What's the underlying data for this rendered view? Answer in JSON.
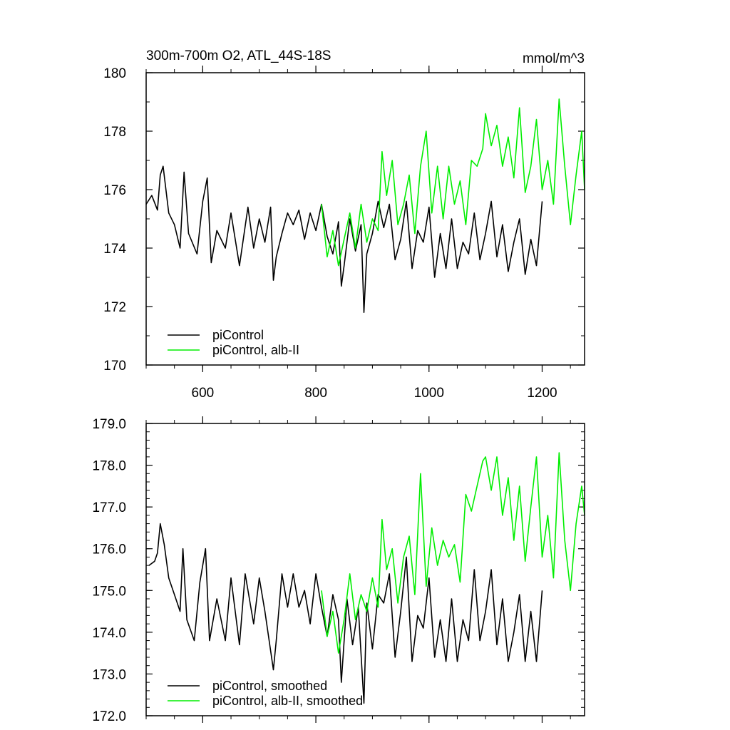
{
  "chart_data": [
    {
      "type": "line",
      "title": "300m-700m O2, ATL_44S-18S",
      "units": "mmol/m^3",
      "xlim": [
        500,
        1275
      ],
      "ylim": [
        170,
        180
      ],
      "xticks": [
        600,
        800,
        1000,
        1200
      ],
      "xtick_labels": [
        "600",
        "800",
        "1000",
        "1200"
      ],
      "yticks": [
        170,
        172,
        174,
        176,
        178,
        180
      ],
      "ytick_labels": [
        "170",
        "172",
        "174",
        "176",
        "178",
        "180"
      ],
      "series": [
        {
          "name": "piControl",
          "color": "#000000",
          "x": [
            500,
            510,
            520,
            525,
            530,
            540,
            550,
            560,
            567,
            575,
            590,
            600,
            608,
            615,
            625,
            640,
            650,
            665,
            680,
            690,
            700,
            710,
            720,
            725,
            730,
            740,
            750,
            760,
            770,
            780,
            790,
            800,
            810,
            820,
            830,
            840,
            845,
            850,
            860,
            870,
            880,
            885,
            890,
            900,
            910,
            920,
            930,
            940,
            950,
            960,
            970,
            980,
            990,
            1000,
            1010,
            1020,
            1030,
            1040,
            1050,
            1060,
            1070,
            1080,
            1090,
            1100,
            1110,
            1120,
            1130,
            1140,
            1150,
            1160,
            1170,
            1180,
            1190,
            1200
          ],
          "values": [
            175.5,
            175.8,
            175.3,
            176.5,
            176.8,
            175.2,
            174.8,
            174.0,
            176.6,
            174.5,
            173.8,
            175.6,
            176.4,
            173.5,
            174.6,
            174.0,
            175.2,
            173.4,
            175.4,
            174.0,
            175.0,
            174.2,
            175.4,
            172.9,
            173.7,
            174.5,
            175.2,
            174.8,
            175.3,
            174.3,
            175.2,
            174.6,
            175.5,
            174.4,
            173.8,
            174.9,
            172.7,
            173.4,
            175.0,
            173.9,
            174.8,
            171.8,
            173.8,
            174.5,
            175.6,
            174.7,
            175.5,
            173.6,
            174.3,
            175.6,
            173.3,
            174.6,
            174.2,
            175.4,
            173.0,
            174.5,
            173.3,
            175.0,
            173.3,
            174.2,
            173.8,
            175.2,
            173.6,
            174.5,
            175.6,
            173.7,
            174.8,
            173.2,
            174.2,
            175.0,
            173.1,
            174.3,
            173.4,
            175.6
          ]
        },
        {
          "name": "piControl, alb-II",
          "color": "#00ee00",
          "x": [
            810,
            820,
            830,
            840,
            850,
            860,
            870,
            880,
            890,
            900,
            910,
            917,
            925,
            935,
            945,
            955,
            965,
            975,
            985,
            995,
            1005,
            1015,
            1025,
            1035,
            1045,
            1055,
            1065,
            1075,
            1085,
            1095,
            1100,
            1110,
            1120,
            1130,
            1140,
            1150,
            1160,
            1170,
            1180,
            1190,
            1200,
            1210,
            1220,
            1230,
            1240,
            1250,
            1260,
            1270,
            1275
          ],
          "values": [
            175.5,
            173.7,
            174.6,
            173.4,
            174.3,
            175.2,
            174.0,
            175.5,
            174.2,
            175.0,
            174.6,
            177.3,
            175.8,
            177.0,
            174.8,
            175.5,
            176.5,
            174.5,
            176.8,
            178.0,
            175.2,
            176.8,
            175.0,
            176.8,
            175.5,
            176.3,
            174.8,
            177.0,
            176.8,
            177.4,
            178.6,
            177.5,
            178.2,
            176.8,
            177.8,
            176.4,
            178.8,
            175.9,
            176.8,
            178.4,
            176.0,
            177.0,
            175.5,
            179.1,
            176.8,
            174.8,
            176.5,
            178.0,
            176.0
          ]
        }
      ],
      "legend": [
        "piControl",
        "piControl, alb-II"
      ],
      "legend_position": "bottom-left"
    },
    {
      "type": "line",
      "title": "",
      "xlim": [
        500,
        1275
      ],
      "ylim": [
        172,
        179
      ],
      "xticks": [
        600,
        800,
        1000,
        1200
      ],
      "yticks": [
        172,
        173,
        174,
        175,
        176,
        177,
        178,
        179
      ],
      "ytick_labels": [
        "172.0",
        "173.0",
        "174.0",
        "175.0",
        "176.0",
        "177.0",
        "178.0",
        "179.0"
      ],
      "series": [
        {
          "name": "piControl, smoothed",
          "color": "#000000",
          "x": [
            505,
            515,
            520,
            525,
            532,
            540,
            550,
            560,
            565,
            572,
            585,
            595,
            605,
            612,
            625,
            640,
            650,
            665,
            675,
            690,
            700,
            710,
            725,
            730,
            740,
            750,
            760,
            770,
            780,
            790,
            800,
            810,
            820,
            830,
            840,
            845,
            855,
            865,
            875,
            885,
            890,
            900,
            910,
            920,
            930,
            940,
            950,
            960,
            970,
            980,
            990,
            1000,
            1010,
            1020,
            1030,
            1040,
            1050,
            1060,
            1070,
            1080,
            1090,
            1100,
            1110,
            1120,
            1130,
            1140,
            1150,
            1160,
            1170,
            1180,
            1190,
            1200
          ],
          "values": [
            175.6,
            175.7,
            175.9,
            176.6,
            176.1,
            175.3,
            174.9,
            174.5,
            176.0,
            174.3,
            173.8,
            175.2,
            176.0,
            173.8,
            174.8,
            173.8,
            175.3,
            173.7,
            175.4,
            174.2,
            175.3,
            174.5,
            173.1,
            173.8,
            175.4,
            174.6,
            175.4,
            174.6,
            175.0,
            174.2,
            175.4,
            174.6,
            173.9,
            174.9,
            174.3,
            172.8,
            174.8,
            173.7,
            174.6,
            172.3,
            174.7,
            173.6,
            174.9,
            174.7,
            175.4,
            173.4,
            174.5,
            175.8,
            173.3,
            174.4,
            174.1,
            175.3,
            173.4,
            174.3,
            173.3,
            174.8,
            173.3,
            174.3,
            173.8,
            175.5,
            173.8,
            174.5,
            175.5,
            173.7,
            174.8,
            173.3,
            174.0,
            174.9,
            173.3,
            174.5,
            173.3,
            175.0
          ]
        },
        {
          "name": "piControl, alb-II, smoothed",
          "color": "#00ee00",
          "x": [
            810,
            820,
            830,
            840,
            850,
            860,
            870,
            880,
            890,
            900,
            910,
            917,
            925,
            935,
            945,
            955,
            965,
            975,
            985,
            995,
            1005,
            1015,
            1025,
            1035,
            1045,
            1055,
            1065,
            1075,
            1085,
            1095,
            1100,
            1110,
            1120,
            1130,
            1140,
            1150,
            1160,
            1170,
            1180,
            1190,
            1200,
            1210,
            1220,
            1230,
            1240,
            1250,
            1260,
            1270,
            1275
          ],
          "values": [
            175.0,
            173.9,
            174.5,
            173.5,
            174.3,
            175.4,
            174.3,
            174.9,
            174.5,
            175.3,
            174.6,
            176.7,
            175.5,
            176.0,
            174.7,
            175.8,
            176.3,
            174.9,
            177.8,
            175.1,
            176.5,
            175.6,
            176.2,
            175.8,
            176.1,
            175.2,
            177.3,
            176.9,
            177.5,
            178.1,
            178.2,
            177.4,
            178.2,
            176.8,
            177.7,
            176.2,
            177.5,
            175.7,
            177.0,
            178.2,
            175.8,
            176.8,
            175.3,
            178.3,
            176.2,
            175.0,
            176.6,
            177.5,
            176.8
          ]
        }
      ],
      "legend": [
        "piControl, smoothed",
        "piControl, alb-II, smoothed"
      ],
      "legend_position": "bottom-left"
    }
  ]
}
